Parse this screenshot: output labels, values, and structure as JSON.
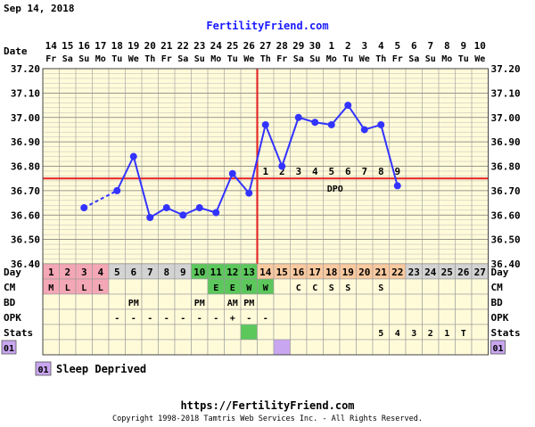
{
  "header": {
    "date": "Sep 14, 2018",
    "site": "FertilityFriend.com"
  },
  "footer": {
    "url": "https://FertilityFriend.com",
    "copyright": "Copyright 1998-2018 Tamtris Web Services Inc. - All Rights Reserved."
  },
  "legend": {
    "code": "01",
    "label": "Sleep Deprived"
  },
  "colors": {
    "chart_bg": "#FFFBD9",
    "grid": "#888888",
    "temp_line": "#3333FF",
    "coverline": "#E52B2B",
    "menses": "#F4A7B5",
    "fertile": "#5CC85C",
    "luteal": "#F9C9A0",
    "day_cell": "#D3D3D3",
    "stats_mark": "#C9A6F0"
  },
  "chart_data": {
    "type": "line",
    "title": "",
    "ylabel": "",
    "ylim": [
      36.4,
      37.2
    ],
    "y_ticks": [
      "37.20",
      "37.10",
      "37.00",
      "36.90",
      "36.80",
      "36.70",
      "36.60",
      "36.50",
      "36.40"
    ],
    "dates": [
      "14",
      "15",
      "16",
      "17",
      "18",
      "19",
      "20",
      "21",
      "22",
      "23",
      "24",
      "25",
      "26",
      "27",
      "28",
      "29",
      "30",
      "1",
      "2",
      "3",
      "4",
      "5",
      "6",
      "7",
      "8",
      "9",
      "10"
    ],
    "weekdays": [
      "Fr",
      "Sa",
      "Su",
      "Mo",
      "Tu",
      "We",
      "Th",
      "Fr",
      "Sa",
      "Su",
      "Mo",
      "Tu",
      "We",
      "Th",
      "Fr",
      "Sa",
      "Su",
      "Mo",
      "Tu",
      "We",
      "Th",
      "Fr",
      "Sa",
      "Su",
      "Mo",
      "Tu",
      "We"
    ],
    "cycle_days": [
      "1",
      "2",
      "3",
      "4",
      "5",
      "6",
      "7",
      "8",
      "9",
      "10",
      "11",
      "12",
      "13",
      "14",
      "15",
      "16",
      "17",
      "18",
      "19",
      "20",
      "21",
      "22",
      "23",
      "24",
      "25",
      "26",
      "27"
    ],
    "series": [
      {
        "values": [
          null,
          null,
          36.63,
          null,
          36.7,
          36.84,
          36.59,
          36.63,
          36.6,
          36.63,
          36.61,
          36.77,
          36.69,
          36.97,
          36.8,
          37.0,
          36.98,
          36.97,
          37.05,
          36.95,
          36.97,
          36.72,
          null,
          null,
          null,
          null,
          null
        ]
      }
    ],
    "dashed_segments": [
      [
        3,
        5
      ]
    ],
    "coverline": 36.75,
    "ovulation_day": 13,
    "dpo_labels": [
      "1",
      "2",
      "3",
      "4",
      "5",
      "6",
      "7",
      "8",
      "9"
    ],
    "dpo_text": "DPO",
    "rows": {
      "Day": [
        "1",
        "2",
        "3",
        "4",
        "5",
        "6",
        "7",
        "8",
        "9",
        "10",
        "11",
        "12",
        "13",
        "14",
        "15",
        "16",
        "17",
        "18",
        "19",
        "20",
        "21",
        "22",
        "23",
        "24",
        "25",
        "26",
        "27"
      ],
      "CM": [
        "M",
        "L",
        "L",
        "L",
        "",
        "",
        "",
        "",
        "",
        "",
        "E",
        "E",
        "W",
        "W",
        "",
        "C",
        "C",
        "S",
        "S",
        "",
        "S",
        "",
        "",
        "",
        "",
        "",
        ""
      ],
      "BD": [
        "",
        "",
        "",
        "",
        "",
        "PM",
        "",
        "",
        "",
        "PM",
        "",
        "AM",
        "PM",
        "",
        "",
        "",
        "",
        "",
        "",
        "",
        "",
        "",
        "",
        "",
        "",
        "",
        ""
      ],
      "OPK": [
        "",
        "",
        "",
        "",
        "-",
        "-",
        "-",
        "-",
        "-",
        "-",
        "-",
        "+",
        "-",
        "-",
        "",
        "",
        "",
        "",
        "",
        "",
        "",
        "",
        "",
        "",
        "",
        "",
        ""
      ],
      "Stats": [
        "",
        "",
        "",
        "",
        "",
        "",
        "",
        "",
        "",
        "",
        "",
        "",
        "",
        "",
        "",
        "",
        "",
        "",
        "",
        "",
        "5",
        "4",
        "3",
        "2",
        "1",
        "T",
        ""
      ]
    },
    "row_labels": [
      "Day",
      "CM",
      "BD",
      "OPK",
      "Stats"
    ],
    "stats_marker_day": 15,
    "side_marker": "01"
  }
}
